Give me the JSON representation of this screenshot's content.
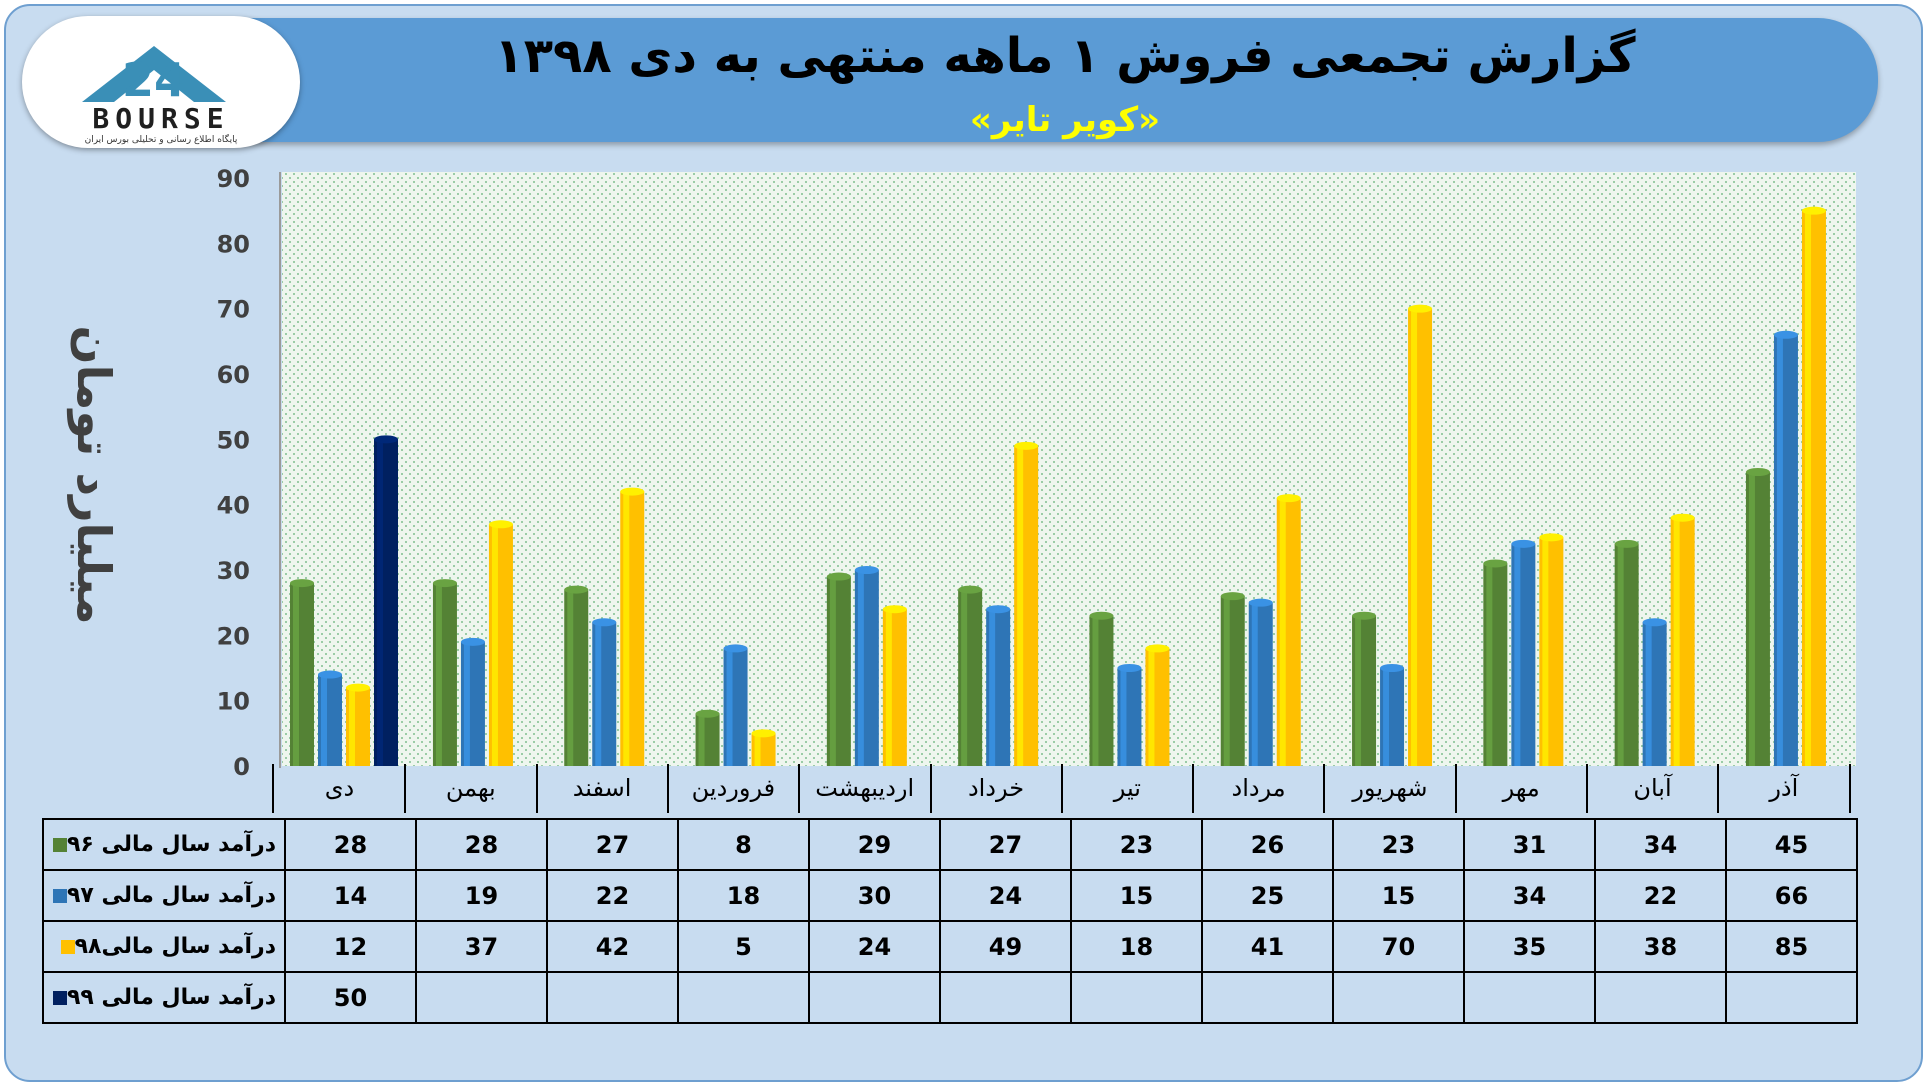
{
  "header": {
    "title": "گزارش تجمعی فروش ۱ ماهه منتهی به دی ۱۳۹۸",
    "subtitle": "«کویر تایر»"
  },
  "logo": {
    "text": "BOURSE",
    "tagline": "پایگاه اطلاع رسانی و تحلیلی بورس ایران",
    "mark": "24"
  },
  "chart_data": {
    "type": "bar",
    "ylabel": "میلیارد تومان",
    "ylim": [
      0,
      90
    ],
    "yticks": [
      0,
      10,
      20,
      30,
      40,
      50,
      60,
      70,
      80,
      90
    ],
    "categories": [
      "دی",
      "بهمن",
      "اسفند",
      "فروردین",
      "اردیبهشت",
      "خرداد",
      "تیر",
      "مرداد",
      "شهریور",
      "مهر",
      "آبان",
      "آذر"
    ],
    "series": [
      {
        "name": "درآمد سال مالی ۹۶",
        "color": "#548235",
        "values": [
          28,
          28,
          27,
          8,
          29,
          27,
          23,
          26,
          23,
          31,
          34,
          45
        ]
      },
      {
        "name": "درآمد سال مالی ۹۷",
        "color": "#2e75b6",
        "values": [
          14,
          19,
          22,
          18,
          30,
          24,
          15,
          25,
          15,
          34,
          22,
          66
        ]
      },
      {
        "name": "درآمد سال مالی۹۸",
        "color": "#ffc000",
        "values": [
          12,
          37,
          42,
          5,
          24,
          49,
          18,
          41,
          70,
          35,
          38,
          85
        ]
      },
      {
        "name": "درآمد سال مالی ۹۹",
        "color": "#002060",
        "values": [
          50,
          null,
          null,
          null,
          null,
          null,
          null,
          null,
          null,
          null,
          null,
          null
        ]
      }
    ],
    "grid": false,
    "legend": "table-bottom"
  }
}
